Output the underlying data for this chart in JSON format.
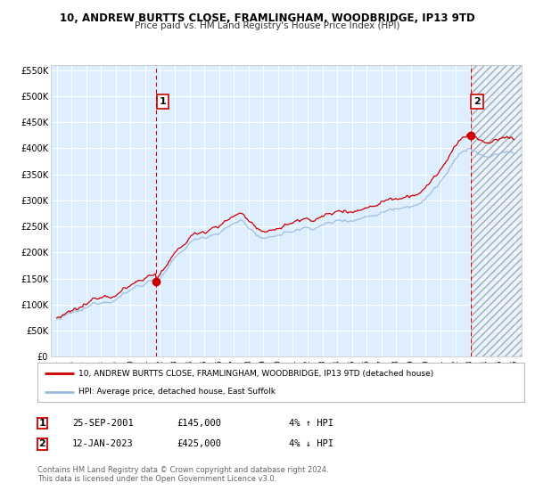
{
  "title1": "10, ANDREW BURTTS CLOSE, FRAMLINGHAM, WOODBRIDGE, IP13 9TD",
  "title2": "Price paid vs. HM Land Registry's House Price Index (HPI)",
  "ylim": [
    0,
    560000
  ],
  "xlim_start": 1994.6,
  "xlim_end": 2026.5,
  "yticks": [
    0,
    50000,
    100000,
    150000,
    200000,
    250000,
    300000,
    350000,
    400000,
    450000,
    500000,
    550000
  ],
  "ytick_labels": [
    "£0",
    "£50K",
    "£100K",
    "£150K",
    "£200K",
    "£250K",
    "£300K",
    "£350K",
    "£400K",
    "£450K",
    "£500K",
    "£550K"
  ],
  "xticks": [
    1995,
    1996,
    1997,
    1998,
    1999,
    2000,
    2001,
    2002,
    2003,
    2004,
    2005,
    2006,
    2007,
    2008,
    2009,
    2010,
    2011,
    2012,
    2013,
    2014,
    2015,
    2016,
    2017,
    2018,
    2019,
    2020,
    2021,
    2022,
    2023,
    2024,
    2025,
    2026
  ],
  "background_color": "#ffffff",
  "plot_bg_color": "#ddeeff",
  "grid_color": "#ffffff",
  "red_line_color": "#cc0000",
  "blue_line_color": "#99bbdd",
  "vline1_x": 2001.73,
  "vline2_x": 2023.04,
  "vline_color": "#cc0000",
  "marker1_y": 145000,
  "marker2_y": 425000,
  "annotation1_label": "1",
  "annotation2_label": "2",
  "legend_line1": "10, ANDREW BURTTS CLOSE, FRAMLINGHAM, WOODBRIDGE, IP13 9TD (detached house)",
  "legend_line2": "HPI: Average price, detached house, East Suffolk",
  "table_row1": [
    "1",
    "25-SEP-2001",
    "£145,000",
    "4% ↑ HPI"
  ],
  "table_row2": [
    "2",
    "12-JAN-2023",
    "£425,000",
    "4% ↓ HPI"
  ],
  "footer1": "Contains HM Land Registry data © Crown copyright and database right 2024.",
  "footer2": "This data is licensed under the Open Government Licence v3.0.",
  "hatched_region_start": 2023.04
}
